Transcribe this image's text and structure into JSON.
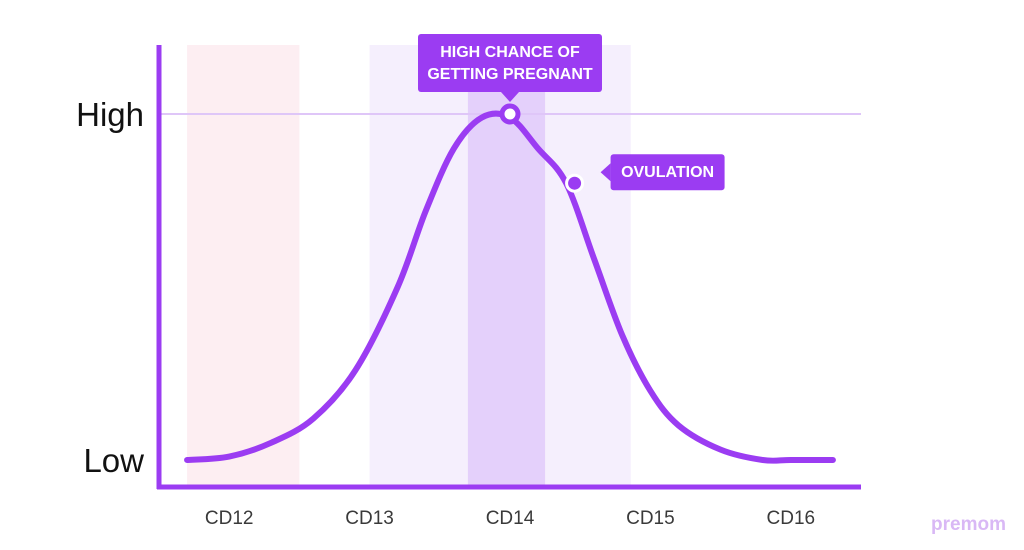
{
  "chart_data": {
    "type": "line",
    "x_categories": [
      "CD12",
      "CD13",
      "CD14",
      "CD15",
      "CD16"
    ],
    "y_tick_labels": [
      "High",
      "Low"
    ],
    "ylim": [
      0,
      1
    ],
    "curve": {
      "x": [
        11.7,
        12.0,
        12.3,
        12.6,
        12.9,
        13.2,
        13.4,
        13.6,
        13.8,
        14.0,
        14.2,
        14.4,
        14.6,
        14.8,
        15.0,
        15.2,
        15.5,
        15.8,
        16.0,
        16.3
      ],
      "y": [
        0.0,
        0.01,
        0.05,
        0.12,
        0.26,
        0.5,
        0.72,
        0.9,
        0.99,
        0.99,
        0.9,
        0.8,
        0.58,
        0.36,
        0.2,
        0.1,
        0.03,
        0.0,
        0.0,
        0.0
      ],
      "color": "#9b3cf2"
    },
    "bands": [
      {
        "from": 11.7,
        "to": 12.5,
        "color": "#fdeef2"
      },
      {
        "from": 13.0,
        "to": 14.86,
        "color": "#f5effd"
      },
      {
        "from": 13.7,
        "to": 14.25,
        "color": "#e4d0fb"
      }
    ],
    "high_line": {
      "y": 1.0,
      "color": "#dfc6f8"
    },
    "annotations": [
      {
        "label": "HIGH CHANCE OF\nGETTING PREGNANT",
        "x": 14.0,
        "y": 1.0,
        "marker": "hollow",
        "position": "above"
      },
      {
        "label": "OVULATION",
        "x": 14.46,
        "y": 0.8,
        "marker": "filled",
        "position": "right"
      }
    ],
    "axis_color": "#9b3cf2",
    "grid": false
  },
  "logo": {
    "text": "premom"
  }
}
